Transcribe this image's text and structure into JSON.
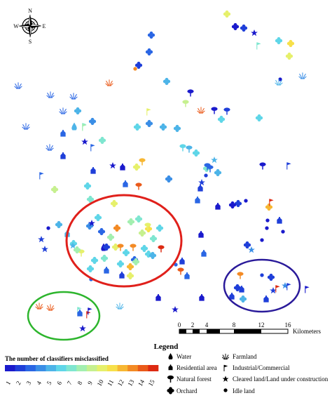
{
  "compass": {
    "n": "N",
    "s": "S",
    "e": "E",
    "w": "W"
  },
  "scale_bar": {
    "ticks": [
      "0",
      "2",
      "4",
      "8",
      "12",
      "16"
    ],
    "unit": "Kilometers"
  },
  "legend": {
    "title": "Legend",
    "ramp_title": "The number of classifiers misclassified",
    "ramp_values": [
      "1",
      "2",
      "3",
      "4",
      "5",
      "6",
      "7",
      "8",
      "9",
      "10",
      "11",
      "12",
      "13",
      "14",
      "15"
    ],
    "ramp_colors": [
      "#1a1acc",
      "#1f3fd9",
      "#2a66e4",
      "#3a8ee6",
      "#4db4e8",
      "#5fd6e8",
      "#7fe6d0",
      "#a3efb0",
      "#c6f08f",
      "#e6f06b",
      "#f7e04a",
      "#f7b733",
      "#f38a24",
      "#ea5a1a",
      "#dd2a12"
    ],
    "classes": [
      {
        "icon": "water-drop",
        "label": "Water"
      },
      {
        "icon": "house",
        "label": "Residential area"
      },
      {
        "icon": "tree",
        "label": "Natural forest"
      },
      {
        "icon": "flower",
        "label": "Orchard"
      },
      {
        "icon": "grass",
        "label": "Farmland"
      },
      {
        "icon": "flag",
        "label": "Industrial/Commercial"
      },
      {
        "icon": "star",
        "label": "Cleared land/Land under construction"
      },
      {
        "icon": "dot",
        "label": "Idle land"
      }
    ]
  },
  "highlight_colors": {
    "red": "#e0201b",
    "blue": "#2a1a9a",
    "green": "#2db52d"
  }
}
